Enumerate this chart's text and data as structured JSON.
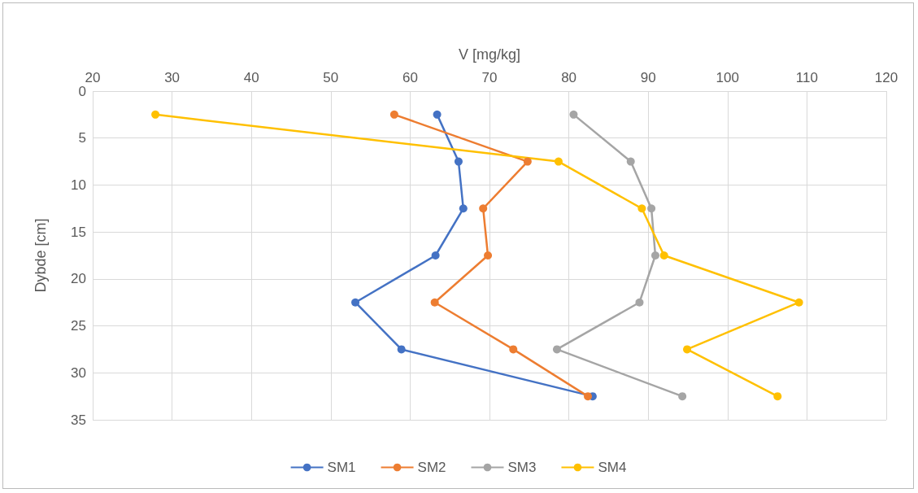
{
  "chart_data": {
    "type": "line",
    "xlabel": "V [mg/kg]",
    "ylabel": "Dybde [cm]",
    "xlim": [
      20,
      120
    ],
    "xticks": [
      20,
      30,
      40,
      50,
      60,
      70,
      80,
      90,
      100,
      110,
      120
    ],
    "ylim": [
      35,
      0
    ],
    "yticks": [
      0,
      5,
      10,
      15,
      20,
      25,
      30,
      35
    ],
    "grid": true,
    "legend": "bottom",
    "marker": "circle",
    "line_style": "solid",
    "series": [
      {
        "name": "SM1",
        "color": "#4472c4",
        "x": [
          63.4,
          66.1,
          66.7,
          63.2,
          53.1,
          58.9,
          83.0
        ],
        "values": [
          2.5,
          7.5,
          12.5,
          17.5,
          22.5,
          27.5,
          32.5
        ]
      },
      {
        "name": "SM2",
        "color": "#ed7d31",
        "x": [
          58.0,
          74.8,
          69.2,
          69.8,
          63.1,
          73.0,
          82.4
        ],
        "values": [
          2.5,
          7.5,
          12.5,
          17.5,
          22.5,
          27.5,
          32.5
        ]
      },
      {
        "name": "SM3",
        "color": "#a5a5a5",
        "x": [
          80.6,
          87.8,
          90.4,
          90.9,
          88.9,
          78.5,
          94.3
        ],
        "values": [
          2.5,
          7.5,
          12.5,
          17.5,
          22.5,
          27.5,
          32.5
        ]
      },
      {
        "name": "SM4",
        "color": "#ffc000",
        "x": [
          27.9,
          78.7,
          89.2,
          92.0,
          109.0,
          94.9,
          106.3
        ],
        "values": [
          2.5,
          7.5,
          12.5,
          17.5,
          22.5,
          27.5,
          32.5
        ]
      }
    ]
  }
}
